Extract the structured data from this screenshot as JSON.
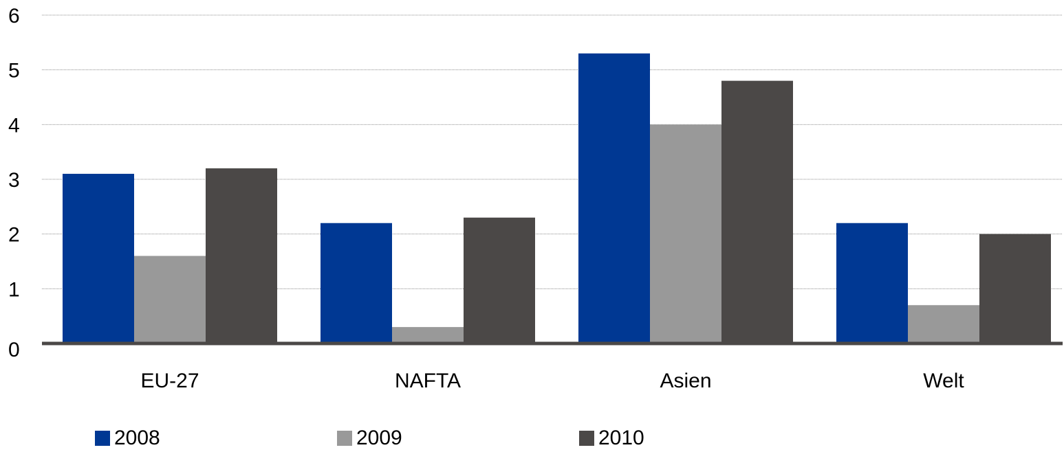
{
  "chart_data": {
    "type": "bar",
    "categories": [
      "EU-27",
      "NAFTA",
      "Asien",
      "Welt"
    ],
    "series": [
      {
        "name": "2008",
        "color": "#003893",
        "values": [
          3.1,
          2.2,
          5.3,
          2.2
        ]
      },
      {
        "name": "2009",
        "color": "#999999",
        "values": [
          1.6,
          0.3,
          4.0,
          0.7
        ]
      },
      {
        "name": "2010",
        "color": "#4b4847",
        "values": [
          3.2,
          2.3,
          4.8,
          2.0
        ]
      }
    ],
    "y_ticks": [
      "0",
      "1",
      "2",
      "3",
      "4",
      "5",
      "6"
    ],
    "ylim": [
      0,
      6
    ],
    "grid": true,
    "legend_position": "bottom",
    "title": "",
    "xlabel": "",
    "ylabel": ""
  }
}
